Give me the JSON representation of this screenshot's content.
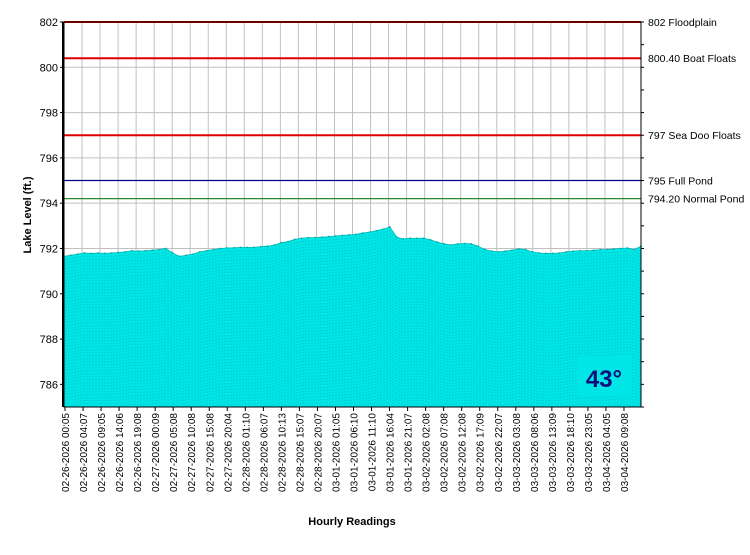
{
  "chart_data": {
    "type": "area",
    "xlabel": "Hourly Readings",
    "ylabel": "Lake Level (ft.)",
    "ylim": [
      785,
      802
    ],
    "y_ticks": [
      786,
      788,
      790,
      792,
      794,
      796,
      798,
      800,
      802
    ],
    "grid": true,
    "fill_color": "#00e5e5",
    "x_ticks": [
      "02-26-2026 00:05",
      "02-26-2026 04:07",
      "02-26-2026 09:05",
      "02-26-2026 14:06",
      "02-26-2026 19:08",
      "02-27-2026 00:09",
      "02-27-2026 05:08",
      "02-27-2026 10:08",
      "02-27-2026 15:08",
      "02-27-2026 20:04",
      "02-28-2026 01:10",
      "02-28-2026 06:07",
      "02-28-2026 10:13",
      "02-28-2026 15:07",
      "02-28-2026 20:07",
      "03-01-2026 01:05",
      "03-01-2026 06:10",
      "03-01-2026 11:10",
      "03-01-2026 16:04",
      "03-01-2026 21:07",
      "03-02-2026 02:08",
      "03-02-2026 07:08",
      "03-02-2026 12:08",
      "03-02-2026 17:09",
      "03-02-2026 22:07",
      "03-03-2026 03:08",
      "03-03-2026 08:06",
      "03-03-2026 13:09",
      "03-03-2026 18:10",
      "03-03-2026 23:05",
      "03-04-2026 04:05",
      "03-04-2026 09:08"
    ],
    "series": [
      {
        "values": [
          791.65,
          791.7,
          791.75,
          791.8,
          791.78,
          791.8,
          791.78,
          791.8,
          791.82,
          791.85,
          791.9,
          791.88,
          791.9,
          791.92,
          791.95,
          792.0,
          791.8,
          791.65,
          791.7,
          791.75,
          791.85,
          791.9,
          791.95,
          792.0,
          792.02,
          792.03,
          792.05,
          792.05,
          792.05,
          792.08,
          792.1,
          792.15,
          792.25,
          792.3,
          792.4,
          792.45,
          792.48,
          792.48,
          792.5,
          792.52,
          792.55,
          792.58,
          792.6,
          792.62,
          792.68,
          792.72,
          792.78,
          792.85,
          792.95,
          792.5,
          792.42,
          792.45,
          792.45,
          792.45,
          792.38,
          792.28,
          792.2,
          792.15,
          792.2,
          792.22,
          792.2,
          792.1,
          791.95,
          791.88,
          791.85,
          791.88,
          791.92,
          791.98,
          791.95,
          791.85,
          791.8,
          791.78,
          791.78,
          791.8,
          791.85,
          791.88,
          791.9,
          791.9,
          791.92,
          791.95,
          791.95,
          791.98,
          792.0,
          792.02,
          791.95,
          792.1
        ]
      }
    ],
    "reference_lines": [
      {
        "value": 802,
        "label": "802 Floodplain",
        "color": "#dd0000"
      },
      {
        "value": 800.4,
        "label": "800.40 Boat Floats",
        "color": "#dd0000"
      },
      {
        "value": 797,
        "label": "797 Sea Doo Floats",
        "color": "#dd0000"
      },
      {
        "value": 795,
        "label": "795 Full Pond",
        "color": "#000088"
      },
      {
        "value": 794.2,
        "label": "794.20 Normal Pond",
        "color": "#2a8a2a"
      }
    ],
    "temperature_badge": {
      "text": "43°",
      "background": "#00e5e5",
      "color": "#10107a"
    }
  }
}
